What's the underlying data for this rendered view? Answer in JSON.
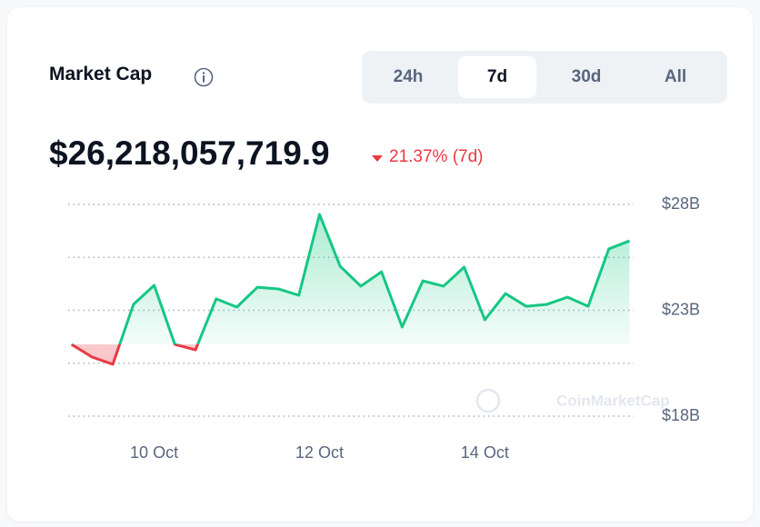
{
  "header": {
    "title": "Market Cap",
    "tabs": [
      "24h",
      "7d",
      "30d",
      "All"
    ],
    "active_tab": 1
  },
  "price": "$26,218,057,719.9",
  "change": "21.37% (7d)",
  "watermark": "CoinMarketCap",
  "chart_data": {
    "type": "line",
    "x": [
      9,
      9.25,
      9.5,
      9.75,
      10,
      10.25,
      10.5,
      10.75,
      11,
      11.25,
      11.5,
      11.75,
      12,
      12.25,
      12.5,
      12.75,
      13,
      13.25,
      13.5,
      13.75,
      14,
      14.25,
      14.5,
      14.75,
      15,
      15.25,
      15.5,
      15.75
    ],
    "series": [
      {
        "name": "Market Cap",
        "up_color": "#16c784",
        "down_color": "#ea3943",
        "values": [
          21.39,
          20.79,
          20.45,
          23.28,
          24.18,
          21.39,
          21.13,
          23.54,
          23.15,
          24.09,
          24.01,
          23.71,
          27.53,
          25.08,
          24.14,
          24.82,
          22.21,
          24.39,
          24.14,
          25.04,
          22.55,
          23.79,
          23.19,
          23.28,
          23.62,
          23.19,
          25.9,
          26.28
        ]
      }
    ],
    "xlim": [
      8.96,
      15.8
    ],
    "xticks": [
      {
        "value": 10,
        "label": "10 Oct"
      },
      {
        "value": 12,
        "label": "12 Oct"
      },
      {
        "value": 14,
        "label": "14 Oct"
      }
    ],
    "ylim": [
      18,
      28
    ],
    "yticks": [
      {
        "value": 18,
        "label": "$18B"
      },
      {
        "value": 20.5,
        "label": null
      },
      {
        "value": 23,
        "label": "$23B"
      },
      {
        "value": 25.5,
        "label": null
      },
      {
        "value": 28,
        "label": "$28B"
      }
    ],
    "grid": true
  }
}
